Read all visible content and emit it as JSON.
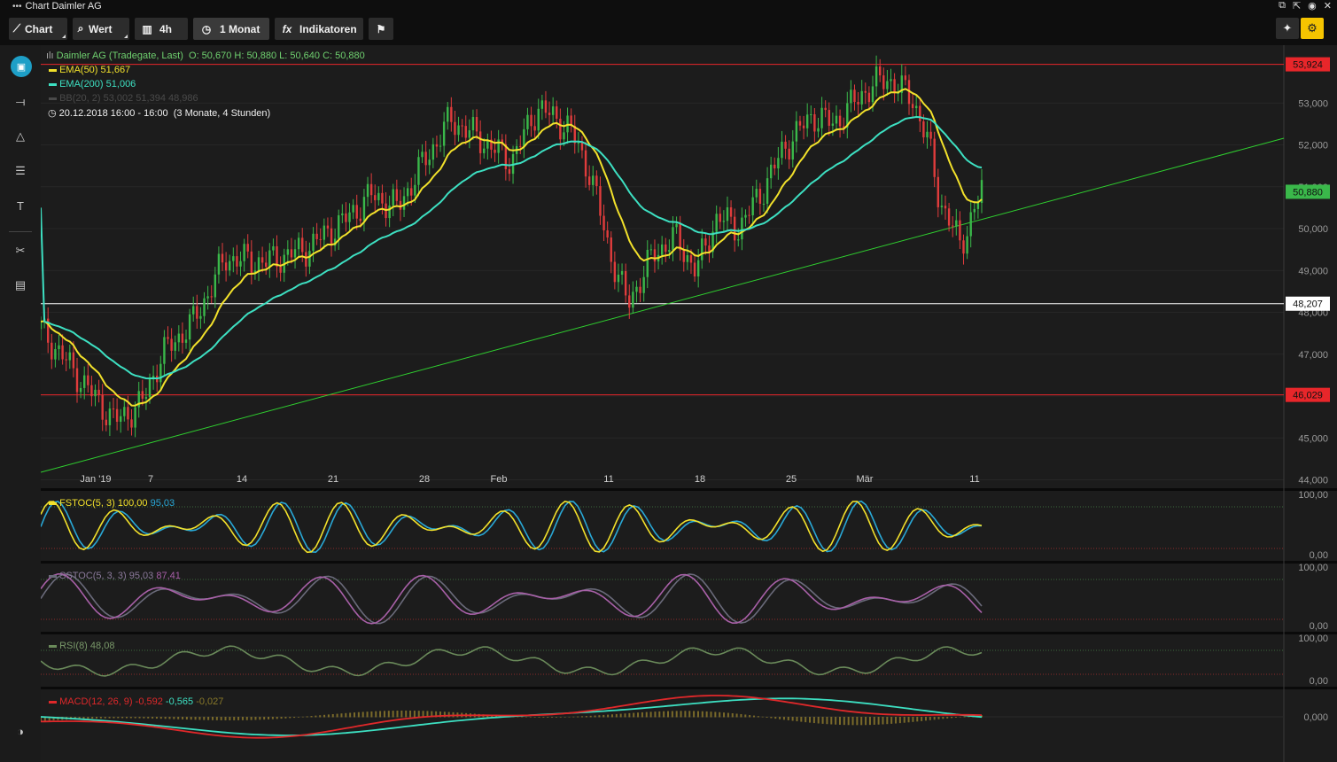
{
  "window": {
    "dots": "•••",
    "title": "Chart Daimler AG"
  },
  "toolbar": {
    "chart_label": "Chart",
    "wert_label": "Wert",
    "interval_label": "4h",
    "period_label": "1 Monat",
    "indicators_label": "Indikatoren",
    "fx_label": "fx"
  },
  "colors": {
    "ema50": "#f2e12b",
    "ema200": "#3de0c2",
    "up": "#3ab84a",
    "down": "#e03c3c",
    "trend": "#2fcf2f",
    "accent": "#1e9fc7",
    "highlight": "#f5c400"
  },
  "main_legend": {
    "instrument": "Daimler AG (Tradegate, Last)",
    "ohlc": "O: 50,670  H: 50,880  L: 50,640  C: 50,880",
    "ema50_label": "EMA(50)",
    "ema50_value": "51,667",
    "ema200_label": "EMA(200)",
    "ema200_value": "51,006",
    "bb_label": "BB(20, 2)",
    "bb_values": "53,002  51,394  48,986",
    "timestamp": "20.12.2018 16:00 - 16:00",
    "range": "(3 Monate, 4 Stunden)"
  },
  "price_axis": {
    "ticks": [
      "53,000",
      "52,000",
      "51,000",
      "50,000",
      "49,000",
      "48,000",
      "47,000",
      "46,000",
      "45,000",
      "44,000"
    ],
    "lines": [
      {
        "value": "53,924",
        "color": "#e8262a"
      },
      {
        "value": "48,207",
        "color": "#ffffff"
      },
      {
        "value": "46,029",
        "color": "#e8262a"
      }
    ],
    "current": "50,880"
  },
  "time_axis": {
    "labels": [
      "Jan '19",
      "7",
      "14",
      "21",
      "28",
      "Feb",
      "11",
      "18",
      "25",
      "Mär",
      "11"
    ]
  },
  "panels": {
    "fstoc": {
      "label": "FSTOC(5, 3)",
      "v1": "100,00",
      "v2": "95,03",
      "top": "100,00",
      "bottom": "0,00"
    },
    "sstoc": {
      "label": "SSTOC(5, 3, 3)",
      "v1": "95,03",
      "v2": "87,41",
      "top": "100,00",
      "bottom": "0,00"
    },
    "rsi": {
      "label": "RSI(8)",
      "v1": "48,08",
      "top": "100,00",
      "bottom": "0,00"
    },
    "macd": {
      "label": "MACD(12, 26, 9)",
      "v1": "-0,592",
      "v2": "-0,565",
      "v3": "-0,027",
      "zero": "0,000"
    }
  },
  "sidebar": {
    "icons": [
      "camera-icon",
      "line-tool-icon",
      "triangle-icon",
      "bars-icon",
      "text-icon",
      "tools-icon",
      "layers-icon",
      "contrast-icon"
    ]
  }
}
